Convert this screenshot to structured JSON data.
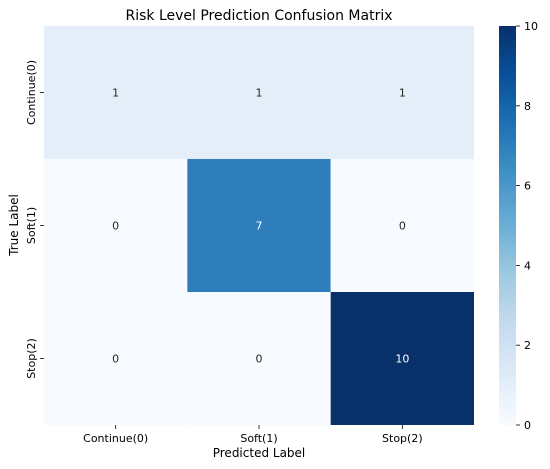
{
  "chart_data": {
    "type": "heatmap",
    "title": "Risk Level Prediction Confusion Matrix",
    "xlabel": "Predicted Label",
    "ylabel": "True Label",
    "x_categories": [
      "Continue(0)",
      "Soft(1)",
      "Stop(2)"
    ],
    "y_categories": [
      "Continue(0)",
      "Soft(1)",
      "Stop(2)"
    ],
    "values": [
      [
        1,
        1,
        1
      ],
      [
        0,
        7,
        0
      ],
      [
        0,
        0,
        10
      ]
    ],
    "colorbar": {
      "min": 0,
      "max": 10,
      "ticks": [
        0,
        2,
        4,
        6,
        8,
        10
      ]
    },
    "colormap": "Blues",
    "annotations": true
  }
}
